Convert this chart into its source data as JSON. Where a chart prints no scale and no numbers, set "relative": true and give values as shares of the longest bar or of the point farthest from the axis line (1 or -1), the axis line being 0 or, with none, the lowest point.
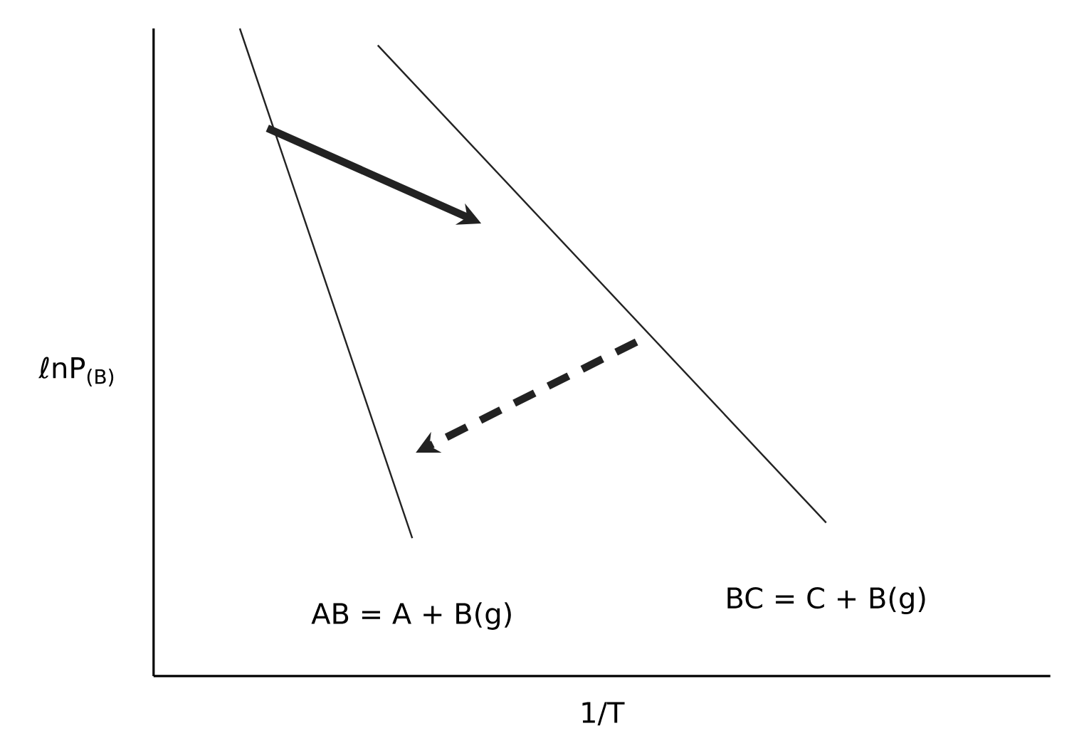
{
  "chart_data": {
    "type": "line",
    "relative": true,
    "xlabel": "1/T",
    "ylabel": "ℓnP$_{(B)}$",
    "tick_labels": false,
    "categories": [
      null,
      null,
      null,
      null,
      null,
      null,
      null,
      null,
      null,
      null,
      null,
      null,
      null,
      null,
      null,
      null,
      null,
      null,
      null,
      null,
      null,
      null,
      null,
      null,
      null,
      null
    ],
    "series": [
      {
        "name": "AB = A + B(g)",
        "color": "#222222",
        "values": [
          null,
          null,
          1,
          null,
          null,
          null,
          null,
          0.213,
          null,
          null,
          null,
          null,
          null,
          null,
          null,
          null,
          null,
          null,
          null,
          null,
          null,
          null,
          null,
          null,
          null,
          null
        ]
      },
      {
        "name": "BC = C + B(g)",
        "color": "#222222",
        "values": [
          null,
          null,
          null,
          null,
          null,
          null,
          0.974,
          null,
          null,
          null,
          null,
          null,
          null,
          null,
          null,
          null,
          null,
          null,
          null,
          0.237,
          null,
          null,
          null,
          null,
          null,
          null
        ]
      }
    ]
  }
}
